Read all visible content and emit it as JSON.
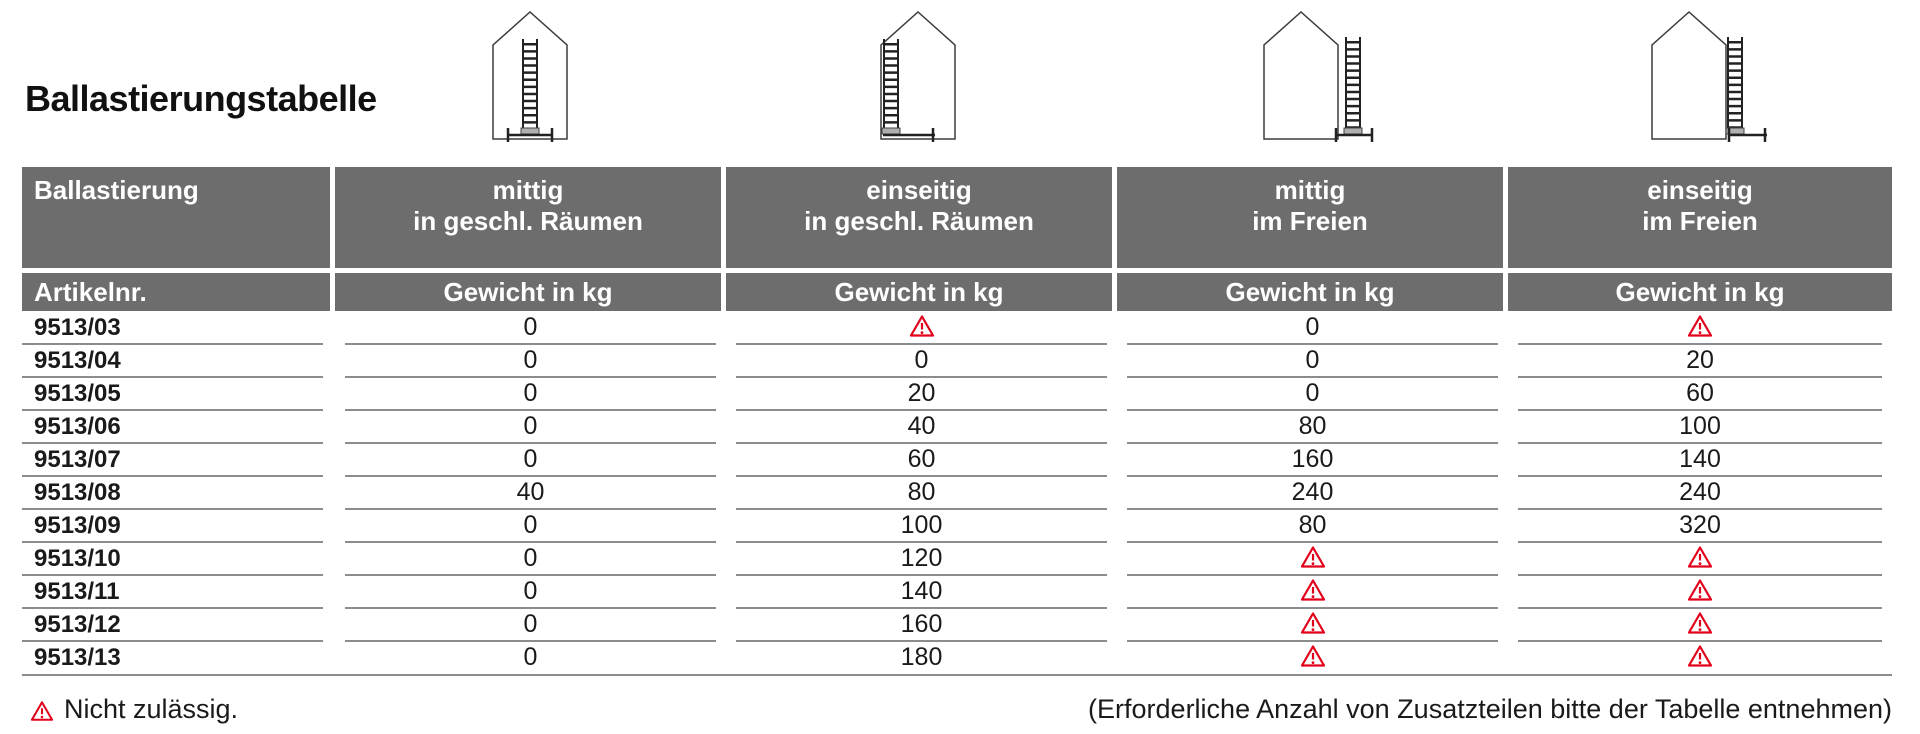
{
  "page": {
    "title": "Ballastierungstabelle"
  },
  "table": {
    "group_header": {
      "label": "Ballastierung",
      "columns": [
        {
          "line1": "mittig",
          "line2": "in geschl. Räumen",
          "icon": "house-ladder-centered-indoor"
        },
        {
          "line1": "einseitig",
          "line2": "in geschl. Räumen",
          "icon": "house-ladder-one-sided-indoor"
        },
        {
          "line1": "mittig",
          "line2": "im Freien",
          "icon": "house-ladder-centered-outdoor"
        },
        {
          "line1": "einseitig",
          "line2": "im Freien",
          "icon": "house-ladder-one-sided-outdoor"
        }
      ]
    },
    "sub_header": {
      "label": "Artikelnr.",
      "weight_labels": [
        "Gewicht in kg",
        "Gewicht in kg",
        "Gewicht in kg",
        "Gewicht in kg"
      ]
    },
    "warn_sentinel": "warn",
    "rows": [
      {
        "art": "9513/03",
        "values": [
          "0",
          "warn",
          "0",
          "warn"
        ]
      },
      {
        "art": "9513/04",
        "values": [
          "0",
          "0",
          "0",
          "20"
        ]
      },
      {
        "art": "9513/05",
        "values": [
          "0",
          "20",
          "0",
          "60"
        ]
      },
      {
        "art": "9513/06",
        "values": [
          "0",
          "40",
          "80",
          "100"
        ]
      },
      {
        "art": "9513/07",
        "values": [
          "0",
          "60",
          "160",
          "140"
        ]
      },
      {
        "art": "9513/08",
        "values": [
          "40",
          "80",
          "240",
          "240"
        ]
      },
      {
        "art": "9513/09",
        "values": [
          "0",
          "100",
          "80",
          "320"
        ]
      },
      {
        "art": "9513/10",
        "values": [
          "0",
          "120",
          "warn",
          "warn"
        ]
      },
      {
        "art": "9513/11",
        "values": [
          "0",
          "140",
          "warn",
          "warn"
        ]
      },
      {
        "art": "9513/12",
        "values": [
          "0",
          "160",
          "warn",
          "warn"
        ]
      },
      {
        "art": "9513/13",
        "values": [
          "0",
          "180",
          "warn",
          "warn"
        ]
      }
    ]
  },
  "footer": {
    "legend": "Nicht zulässig.",
    "note": "(Erforderliche Anzahl von Zusatzteilen bitte der Tabelle entnehmen)"
  },
  "colors": {
    "header_bg": "#6d6d6d",
    "warning_red": "#e2001a",
    "line_gray": "#8c8c8c"
  }
}
